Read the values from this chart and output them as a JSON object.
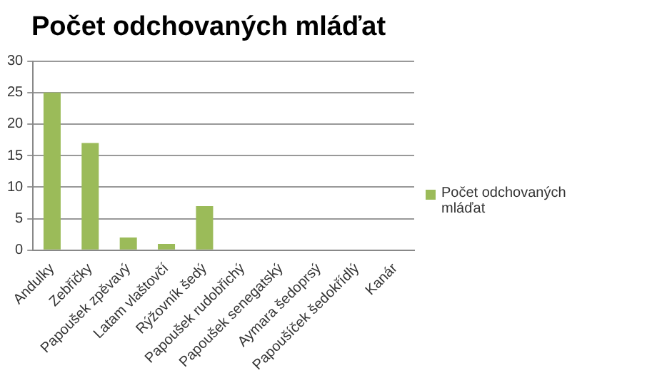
{
  "chart_data": {
    "type": "bar",
    "title": "Počet odchovaných mláďat",
    "categories": [
      "Andulky",
      "Zebřičky",
      "Papoušek zpěvavý",
      "Latam vlaštovčí",
      "Rýžovník šedý",
      "Papoušek rudobřichý",
      "Papoušek senegatský",
      "Aymara šedoprsý",
      "Papoušíček šedokřídlý",
      "Kanár"
    ],
    "series": [
      {
        "name": "Počet odchovaných mláďat",
        "color": "#9bbb59",
        "values": [
          25,
          17,
          2,
          1,
          7,
          0,
          0,
          0,
          0,
          0
        ]
      }
    ],
    "ylim": [
      0,
      30
    ],
    "yticks": [
      0,
      5,
      10,
      15,
      20,
      25,
      30
    ],
    "grid": "y",
    "legend": "right"
  }
}
